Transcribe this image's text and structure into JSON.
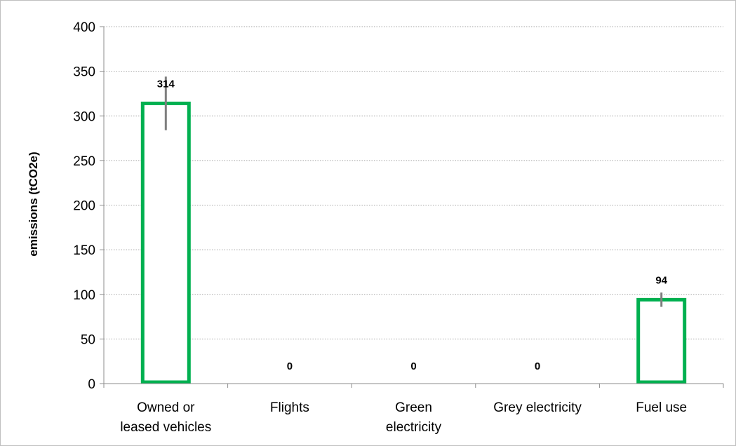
{
  "chart_data": {
    "type": "bar",
    "title": "",
    "xlabel": "",
    "ylabel": "emissions (tCO2e)",
    "ylim": [
      0,
      400
    ],
    "y_ticks": [
      0,
      50,
      100,
      150,
      200,
      250,
      300,
      350,
      400
    ],
    "grid": "horizontal dotted",
    "categories": [
      [
        "Owned or",
        "leased vehicles"
      ],
      [
        "Flights"
      ],
      [
        "Green",
        "electricity"
      ],
      [
        "Grey electricity"
      ],
      [
        "Fuel use"
      ]
    ],
    "values": [
      314,
      0,
      0,
      0,
      94
    ],
    "data_labels": [
      "314",
      "0",
      "0",
      "0",
      "94"
    ],
    "error_bars": [
      {
        "low": 284,
        "high": 344
      },
      null,
      null,
      null,
      {
        "low": 86,
        "high": 102
      }
    ],
    "colors": {
      "bar_outline": "#00b050",
      "bar_fill": "#ffffff",
      "error_bar": "#7f7f7f",
      "grid": "#a6a6a6",
      "axis": "#8c8c8c"
    }
  }
}
